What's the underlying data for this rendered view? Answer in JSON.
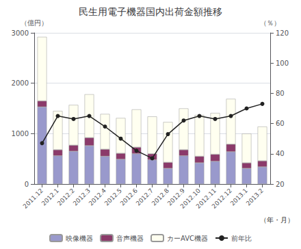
{
  "chart_data": {
    "type": "bar",
    "title": "民生用電子機器国内出荷金額推移",
    "ylabel": "（億円）",
    "y2label": "（％）",
    "xlabel": "（年・月）",
    "categories": [
      "2011.12",
      "2012.1",
      "2012.2",
      "2012.3",
      "2012.4",
      "2012.5",
      "2012.6",
      "2012.7",
      "2012.8",
      "2012.9",
      "2012.10",
      "2012.11",
      "2012.12",
      "2013.1",
      "2013.2"
    ],
    "series": [
      {
        "name": "映像機器",
        "type": "bar",
        "color": "#9999CC",
        "values": [
          1530,
          560,
          650,
          760,
          550,
          490,
          600,
          480,
          310,
          560,
          420,
          450,
          640,
          310,
          340
        ]
      },
      {
        "name": "音声機器",
        "type": "bar",
        "color": "#8B3A6A",
        "values": [
          120,
          120,
          120,
          160,
          140,
          120,
          130,
          120,
          120,
          120,
          130,
          140,
          150,
          110,
          120
        ]
      },
      {
        "name": "カーAVC機器",
        "type": "bar",
        "color": "#FFFFF0",
        "values": [
          1270,
          770,
          800,
          860,
          700,
          700,
          750,
          740,
          800,
          820,
          820,
          820,
          900,
          580,
          680
        ]
      },
      {
        "name": "前年比",
        "type": "line",
        "axis": "y2",
        "color": "#222222",
        "marker": "circle",
        "line_style": "solid",
        "values": [
          47,
          65,
          63,
          65,
          58,
          50,
          42,
          37,
          53,
          62,
          65,
          63,
          65,
          70,
          73
        ]
      }
    ],
    "stacked": true,
    "ylim": [
      0,
      3000
    ],
    "yticks": [
      0,
      1000,
      2000,
      3000
    ],
    "y2lim": [
      20,
      120
    ],
    "y2ticks": [
      20,
      40,
      60,
      80,
      100,
      120
    ],
    "grid": true,
    "legend": "bottom"
  }
}
